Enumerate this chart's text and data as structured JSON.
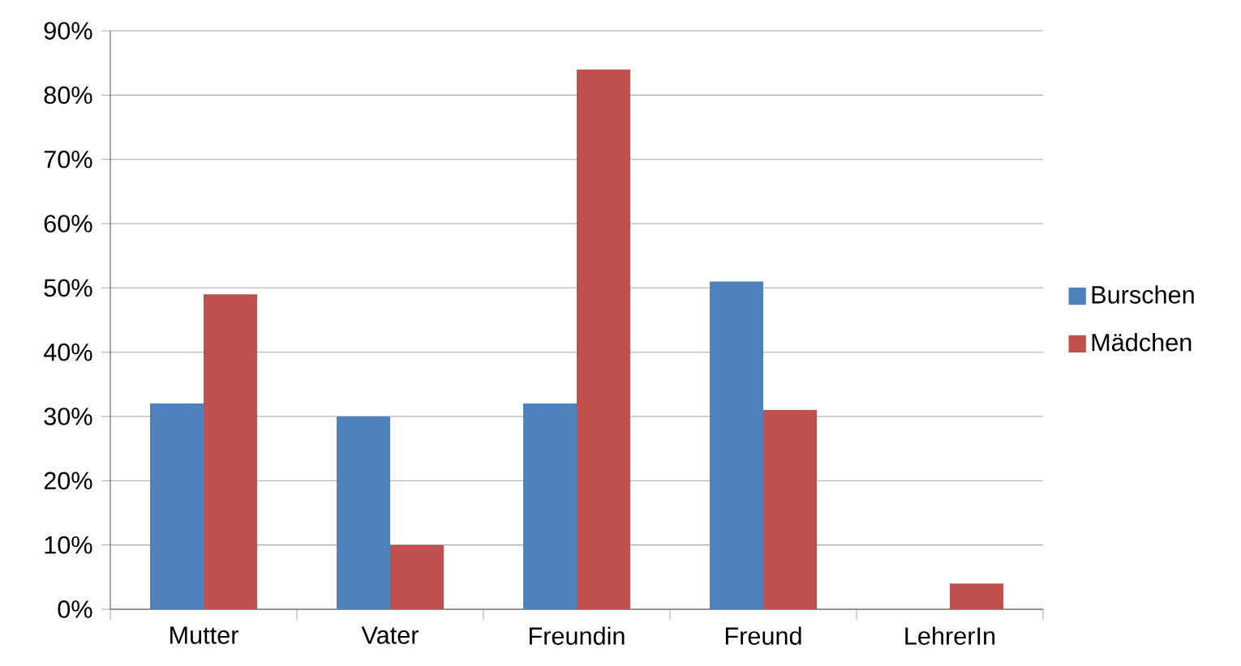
{
  "chart_data": {
    "type": "bar",
    "categories": [
      "Mutter",
      "Vater",
      "Freundin",
      "Freund",
      "LehrerIn"
    ],
    "series": [
      {
        "name": "Burschen",
        "color": "#4f81bd",
        "values": [
          32,
          30,
          32,
          51,
          0
        ]
      },
      {
        "name": "Mädchen",
        "color": "#c0504d",
        "values": [
          49,
          10,
          84,
          31,
          4
        ]
      }
    ],
    "ylim": [
      0,
      90
    ],
    "yticks": [
      {
        "value": 0,
        "label": "0%"
      },
      {
        "value": 10,
        "label": "10%"
      },
      {
        "value": 20,
        "label": "20%"
      },
      {
        "value": 30,
        "label": "30%"
      },
      {
        "value": 40,
        "label": "40%"
      },
      {
        "value": 50,
        "label": "50%"
      },
      {
        "value": 60,
        "label": "60%"
      },
      {
        "value": 70,
        "label": "70%"
      },
      {
        "value": 80,
        "label": "80%"
      },
      {
        "value": 90,
        "label": "90%"
      }
    ],
    "grid": "y",
    "legend": "right"
  }
}
